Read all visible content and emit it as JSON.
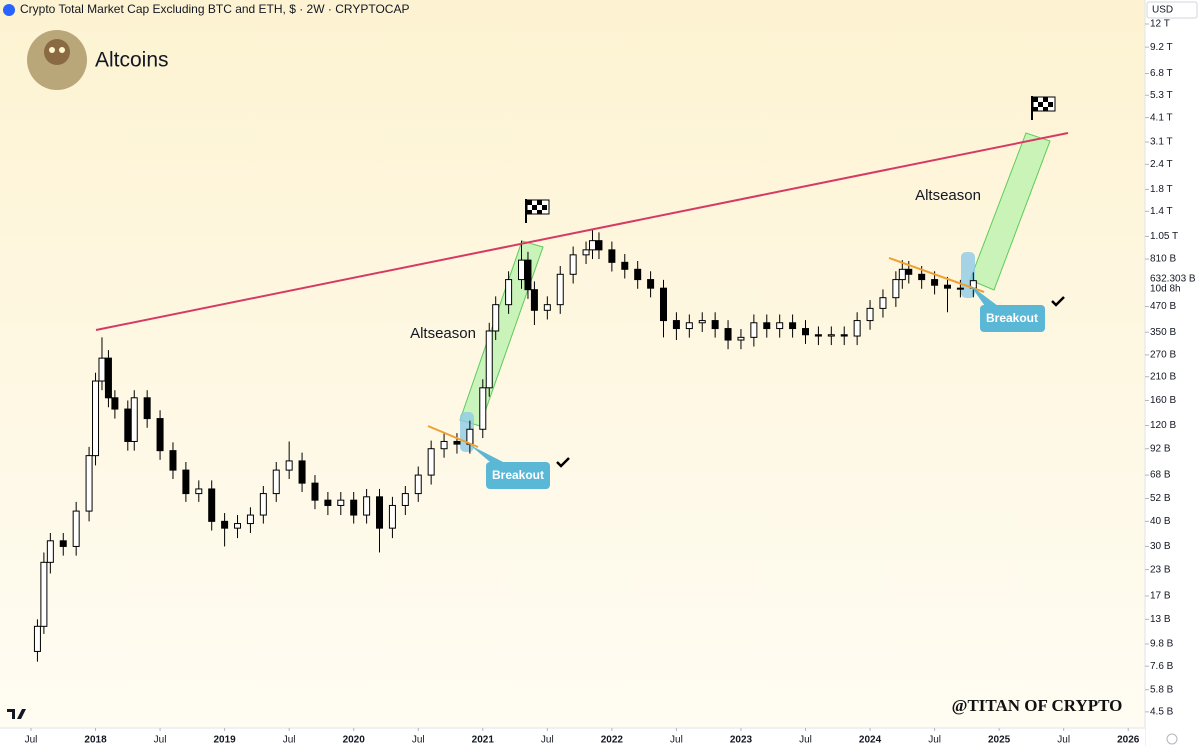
{
  "header": {
    "symbol": "Crypto Total Market Cap Excluding BTC and ETH, $ · 2W · CRYPTOCAP",
    "author": "Altcoins",
    "currency": "USD",
    "watermark": "@TITAN OF CRYPTO"
  },
  "chart_data": {
    "type": "candlestick",
    "log_scale": true,
    "grid": false,
    "up_color": "#ffffff",
    "down_color": "#000000",
    "x": [
      2017.55,
      2017.6,
      2017.65,
      2017.75,
      2017.85,
      2017.95,
      2018.0,
      2018.05,
      2018.1,
      2018.15,
      2018.25,
      2018.3,
      2018.4,
      2018.5,
      2018.6,
      2018.7,
      2018.8,
      2018.9,
      2019.0,
      2019.1,
      2019.2,
      2019.3,
      2019.4,
      2019.5,
      2019.6,
      2019.7,
      2019.8,
      2019.9,
      2020.0,
      2020.1,
      2020.2,
      2020.3,
      2020.4,
      2020.5,
      2020.6,
      2020.7,
      2020.8,
      2020.9,
      2021.0,
      2021.05,
      2021.1,
      2021.2,
      2021.3,
      2021.35,
      2021.4,
      2021.5,
      2021.6,
      2021.7,
      2021.8,
      2021.85,
      2021.9,
      2022.0,
      2022.1,
      2022.2,
      2022.3,
      2022.4,
      2022.5,
      2022.6,
      2022.7,
      2022.8,
      2022.9,
      2023.0,
      2023.1,
      2023.2,
      2023.3,
      2023.4,
      2023.5,
      2023.6,
      2023.7,
      2023.8,
      2023.9,
      2024.0,
      2024.1,
      2024.2,
      2024.25,
      2024.3,
      2024.4,
      2024.5,
      2024.6,
      2024.7,
      2024.8
    ],
    "open": [
      9,
      12,
      25,
      32,
      30,
      45,
      85,
      200,
      260,
      165,
      145,
      100,
      165,
      130,
      90,
      72,
      55,
      58,
      40,
      37,
      39,
      43,
      55,
      72,
      80,
      62,
      51,
      48,
      51,
      43,
      53,
      37,
      48,
      55,
      68,
      92,
      100,
      97,
      115,
      185,
      355,
      480,
      640,
      800,
      570,
      450,
      480,
      680,
      850,
      900,
      1000,
      900,
      780,
      720,
      640,
      580,
      400,
      365,
      390,
      400,
      365,
      320,
      330,
      390,
      365,
      390,
      365,
      340,
      335,
      340,
      335,
      400,
      460,
      520,
      640,
      720,
      680,
      640,
      600,
      580,
      580
    ],
    "high": [
      13,
      28,
      35,
      35,
      50,
      94,
      220,
      330,
      285,
      180,
      160,
      180,
      180,
      143,
      99,
      79,
      64,
      64,
      44,
      43,
      47,
      60,
      79,
      100,
      88,
      68,
      56,
      56,
      56,
      58,
      58,
      53,
      60,
      75,
      101,
      110,
      110,
      127,
      204,
      390,
      528,
      704,
      1000,
      880,
      627,
      528,
      748,
      935,
      990,
      1150,
      1100,
      990,
      858,
      792,
      704,
      638,
      440,
      429,
      440,
      440,
      402,
      363,
      429,
      429,
      429,
      429,
      402,
      374,
      374,
      374,
      440,
      506,
      572,
      704,
      800,
      792,
      748,
      704,
      660,
      638,
      695
    ],
    "low": [
      8,
      11,
      22,
      27,
      27,
      40,
      76,
      180,
      148,
      130,
      90,
      90,
      117,
      81,
      65,
      50,
      50,
      36,
      30,
      33,
      35,
      39,
      50,
      65,
      56,
      46,
      43,
      43,
      39,
      39,
      28,
      33,
      43,
      50,
      61,
      83,
      87,
      87,
      104,
      167,
      320,
      432,
      576,
      513,
      380,
      405,
      432,
      612,
      765,
      810,
      810,
      702,
      648,
      576,
      522,
      330,
      320,
      329,
      351,
      329,
      288,
      288,
      297,
      329,
      329,
      329,
      306,
      302,
      302,
      302,
      302,
      360,
      414,
      468,
      576,
      612,
      576,
      540,
      440,
      522,
      522
    ],
    "close": [
      12,
      25,
      32,
      30,
      45,
      85,
      200,
      260,
      165,
      145,
      100,
      165,
      130,
      90,
      72,
      55,
      58,
      40,
      37,
      39,
      43,
      55,
      72,
      80,
      62,
      51,
      48,
      51,
      43,
      53,
      37,
      48,
      55,
      68,
      92,
      100,
      97,
      115,
      185,
      355,
      480,
      640,
      800,
      570,
      450,
      480,
      680,
      850,
      900,
      1000,
      900,
      780,
      720,
      640,
      580,
      400,
      365,
      390,
      400,
      365,
      320,
      330,
      390,
      365,
      390,
      365,
      340,
      335,
      340,
      335,
      400,
      460,
      520,
      640,
      720,
      680,
      640,
      600,
      580,
      580,
      632
    ],
    "xlim": [
      2017.26,
      2026.13
    ],
    "xticks": [
      {
        "value": 2017.5,
        "label": "Jul"
      },
      2018,
      {
        "value": 2018.5,
        "label": "Jul"
      },
      2019,
      {
        "value": 2019.5,
        "label": "Jul"
      },
      2020,
      {
        "value": 2020.5,
        "label": "Jul"
      },
      2021,
      {
        "value": 2021.5,
        "label": "Jul"
      },
      2022,
      {
        "value": 2022.5,
        "label": "Jul"
      },
      2023,
      {
        "value": 2023.5,
        "label": "Jul"
      },
      2024,
      {
        "value": 2024.5,
        "label": "Jul"
      },
      2025,
      {
        "value": 2025.5,
        "label": "Jul"
      },
      2026
    ],
    "ylim": [
      3.74,
      15800
    ],
    "yticks": [
      {
        "value": 12000,
        "label": "12 T"
      },
      {
        "value": 9200,
        "label": "9.2 T"
      },
      {
        "value": 6800,
        "label": "6.8 T"
      },
      {
        "value": 5300,
        "label": "5.3 T"
      },
      {
        "value": 4100,
        "label": "4.1 T"
      },
      {
        "value": 3100,
        "label": "3.1 T"
      },
      {
        "value": 2400,
        "label": "2.4 T"
      },
      {
        "value": 1800,
        "label": "1.8 T"
      },
      {
        "value": 1400,
        "label": "1.4 T"
      },
      {
        "value": 1050,
        "label": "1.05 T"
      },
      {
        "value": 810,
        "label": "810 B"
      },
      {
        "value": 470,
        "label": "470 B"
      },
      {
        "value": 350,
        "label": "350 B"
      },
      {
        "value": 270,
        "label": "270 B"
      },
      {
        "value": 210,
        "label": "210 B"
      },
      {
        "value": 160,
        "label": "160 B"
      },
      {
        "value": 120,
        "label": "120 B"
      },
      {
        "value": 92,
        "label": "92 B"
      },
      {
        "value": 68,
        "label": "68 B"
      },
      {
        "value": 52,
        "label": "52 B"
      },
      {
        "value": 40,
        "label": "40 B"
      },
      {
        "value": 30,
        "label": "30 B"
      },
      {
        "value": 23,
        "label": "23 B"
      },
      {
        "value": 17,
        "label": "17 B"
      },
      {
        "value": 13,
        "label": "13 B"
      },
      {
        "value": 9.8,
        "label": "9.8 B"
      },
      {
        "value": 7.6,
        "label": "7.6 B"
      },
      {
        "value": 5.8,
        "label": "5.8 B"
      },
      {
        "value": 4.5,
        "label": "4.5 B"
      }
    ],
    "last_price": {
      "value": 632.303,
      "label": "632.303 B"
    },
    "countdown": "10d 8h",
    "annotations": [
      "Altseason",
      "Breakout",
      "Altseason",
      "Breakout"
    ]
  }
}
